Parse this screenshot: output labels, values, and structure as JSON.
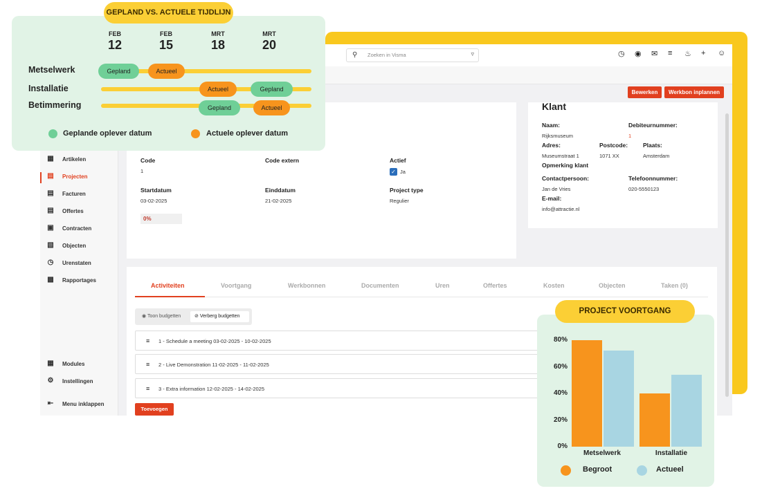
{
  "search": {
    "placeholder": "Zoeken in Visma"
  },
  "toolbar": {
    "edit_label": "Bewerken",
    "plan_label": "Werkbon inplannen"
  },
  "sidebar": {
    "items": [
      {
        "label": "Artikelen",
        "icon": "boxes-icon"
      },
      {
        "label": "Projecten",
        "icon": "briefcase-icon"
      },
      {
        "label": "Facturen",
        "icon": "invoice-icon"
      },
      {
        "label": "Offertes",
        "icon": "quote-icon"
      },
      {
        "label": "Contracten",
        "icon": "contract-icon"
      },
      {
        "label": "Objecten",
        "icon": "building-icon"
      },
      {
        "label": "Urenstaten",
        "icon": "clock-icon"
      },
      {
        "label": "Rapportages",
        "icon": "chart-icon"
      }
    ],
    "bottom": [
      {
        "label": "Modules",
        "icon": "modules-icon"
      },
      {
        "label": "Instellingen",
        "icon": "settings-icon"
      },
      {
        "label": "Menu inklappen",
        "icon": "collapse-icon"
      }
    ]
  },
  "project": {
    "code_label": "Code",
    "code_value": "1",
    "code_extern_label": "Code extern",
    "actief_label": "Actief",
    "actief_value": "Ja",
    "startdatum_label": "Startdatum",
    "startdatum_value": "03-02-2025",
    "einddatum_label": "Einddatum",
    "einddatum_value": "21-02-2025",
    "type_label": "Project type",
    "type_value": "Regulier",
    "progress_value": "0%"
  },
  "client": {
    "title": "Klant",
    "naam_label": "Naam:",
    "naam_value": "Rijksmuseum",
    "debiteur_label": "Debiteurnummer:",
    "debiteur_value": "1",
    "adres_label": "Adres:",
    "adres_value": "Museumstraat 1",
    "postcode_label": "Postcode:",
    "postcode_value": "1071 XX",
    "plaats_label": "Plaats:",
    "plaats_value": "Amsterdam",
    "opmerking_label": "Opmerking klant",
    "contact_label": "Contactpersoon:",
    "contact_value": "Jan de Vries",
    "telefoon_label": "Telefoonnummer:",
    "telefoon_value": "020-5550123",
    "email_label": "E-mail:",
    "email_value": "info@attractie.nl"
  },
  "tabs": [
    "Activiteiten",
    "Voortgang",
    "Werkbonnen",
    "Documenten",
    "Uren",
    "Offertes",
    "Kosten",
    "Objecten",
    "Taken (0)"
  ],
  "budget_toggle": {
    "show": "Toon budgetten",
    "hide": "Verberg budgetten"
  },
  "activities": [
    "1 - Schedule a meeting 03-02-2025 - 10-02-2025",
    "2 - Live Demonstration 11-02-2025 - 11-02-2025",
    "3 - Extra information 12-02-2025 - 14-02-2025"
  ],
  "add_label": "Toevoegen",
  "timeline": {
    "title": "GEPLAND VS. ACTUELE TIJDLIJN",
    "dates": [
      {
        "month": "FEB",
        "day": "12"
      },
      {
        "month": "FEB",
        "day": "15"
      },
      {
        "month": "MRT",
        "day": "18"
      },
      {
        "month": "MRT",
        "day": "20"
      }
    ],
    "rows": [
      {
        "label": "Metselwerk",
        "first": "Gepland",
        "second": "Actueel"
      },
      {
        "label": "Installatie",
        "first": "Actueel",
        "second": "Gepland"
      },
      {
        "label": "Betimmering",
        "first": "Gepland",
        "second": "Actueel"
      }
    ],
    "legend_planned": "Geplande oplever datum",
    "legend_actual": "Actuele oplever datum",
    "colors": {
      "planned": "#6fcf97",
      "actual": "#f7941d",
      "track": "#fbcf35"
    }
  },
  "chart_data": {
    "type": "bar",
    "title": "PROJECT VOORTGANG",
    "categories": [
      "Metselwerk",
      "Installatie"
    ],
    "series": [
      {
        "name": "Begroot",
        "values": [
          80,
          40
        ],
        "color": "#f7941d"
      },
      {
        "name": "Actueel",
        "values": [
          72,
          54
        ],
        "color": "#a8d5e2"
      }
    ],
    "yticks": [
      "80%",
      "60%",
      "40%",
      "20%",
      "0%"
    ],
    "ylim": [
      0,
      80
    ]
  }
}
